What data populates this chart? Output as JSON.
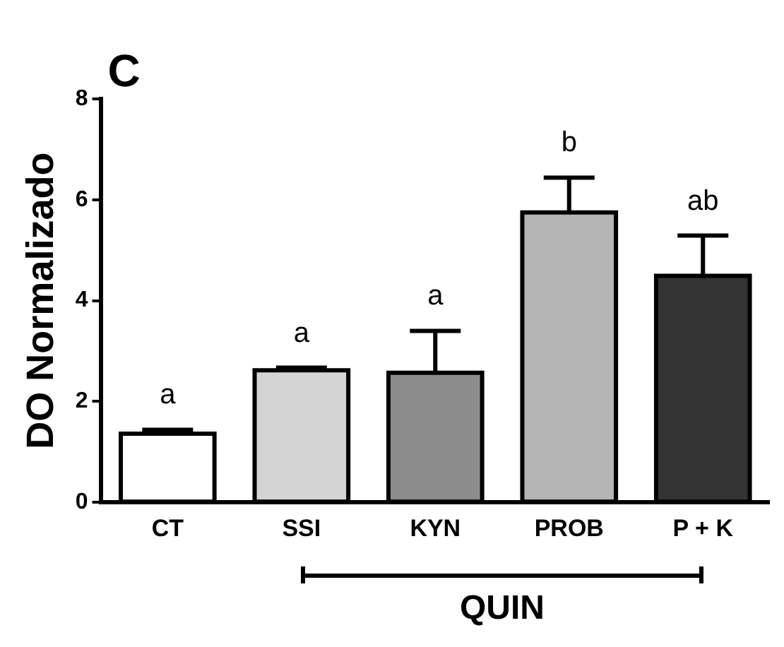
{
  "chart_data": {
    "type": "bar",
    "title": "C",
    "ylabel": "DO Normalizado",
    "categories": [
      "CT",
      "SSI",
      "KYN",
      "PROB",
      "P + K"
    ],
    "values": [
      1.36,
      2.62,
      2.57,
      5.75,
      4.49
    ],
    "errors": [
      [
        1.36,
        1.44
      ],
      [
        2.62,
        2.67
      ],
      [
        2.57,
        3.4
      ],
      [
        5.75,
        6.44
      ],
      [
        4.49,
        5.29
      ]
    ],
    "colors": [
      "#ffffff",
      "#d4d4d4",
      "#8c8c8c",
      "#b4b4b4",
      "#333333"
    ],
    "ylim": [
      0,
      8
    ],
    "yticks": [
      0,
      2,
      4,
      6,
      8
    ],
    "grid": false,
    "legend": false,
    "annotations": [
      "a",
      "a",
      "a",
      "b",
      "ab",
      "QUIN"
    ]
  }
}
